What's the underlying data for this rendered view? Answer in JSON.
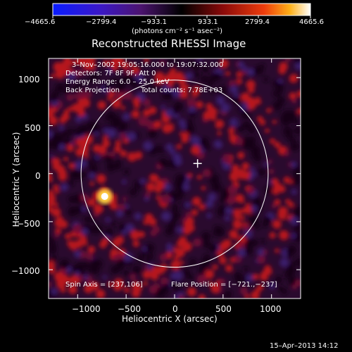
{
  "chart_data": {
    "type": "heatmap",
    "title": "Reconstructed RHESSI Image",
    "xlabel": "Heliocentric X (arcsec)",
    "ylabel": "Heliocentric Y (arcsec)",
    "xlim": [
      -1300,
      1300
    ],
    "ylim": [
      -1300,
      1200
    ],
    "x_ticks": [
      "−1000",
      "−500",
      "0",
      "500",
      "1000"
    ],
    "x_tick_values": [
      -1000,
      -500,
      0,
      500,
      1000
    ],
    "y_ticks": [
      "1000",
      "500",
      "0",
      "−500",
      "−1000"
    ],
    "y_tick_values": [
      1000,
      500,
      0,
      -500,
      -1000
    ],
    "colorbar": {
      "ticks": [
        "−4665.6",
        "−2799.4",
        "−933.1",
        "933.1",
        "2799.4",
        "4665.6"
      ],
      "min": -4665.6,
      "max": 4665.6,
      "unit_label": "(photons cm⁻² s⁻¹ asec⁻²)"
    },
    "annotations": {
      "time_range": "3–Nov–2002 19:05:16.000 to 19:07:32.000",
      "detectors": "Detectors: 7F 8F 9F, Att 0",
      "energy": "Energy Range: 6.0 – 25.0 keV",
      "method": "Back Projection",
      "counts": "Total counts: 7.78E+03",
      "spin_axis": "Spin Axis = [237,106]",
      "flare_position": "Flare Position = [−721.,−237]"
    },
    "bright_source": {
      "x": -721,
      "y": -237
    },
    "spin_axis_point": {
      "x": 237,
      "y": 106
    },
    "solar_disk_radius_arcsec": 965,
    "timestamp": "15–Apr–2013 14:12"
  },
  "colors": {
    "foreground": "#ffffff",
    "background": "#000000"
  }
}
